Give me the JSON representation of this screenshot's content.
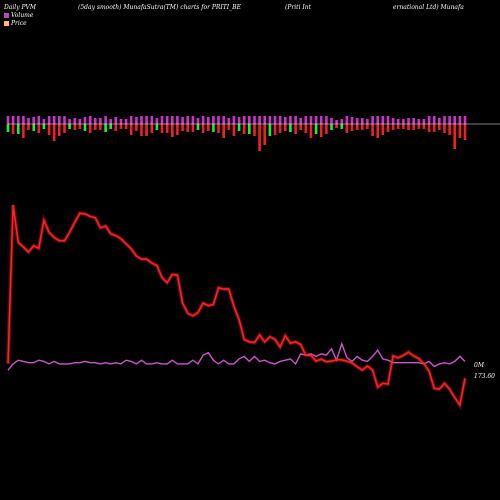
{
  "header": {
    "left": "Daily PVM",
    "center": "(5day smooth) MunafaSutra(TM) charts for PRITI_BE",
    "right1": "(Priti Int",
    "right2": "ernational Ltd) Munafa"
  },
  "legend": {
    "volume_label": "Volume",
    "price_label": "Price",
    "volume_color": "#bb44bb",
    "price_color": "#ffbb66"
  },
  "chart_data": {
    "type": "line",
    "volume_bars": {
      "up_color": "#22ee22",
      "down_color": "#ee2222",
      "oscillator_color": "#cc33cc",
      "values": [
        8,
        -10,
        10,
        -14,
        -6,
        7,
        -9,
        5,
        -11,
        -17,
        -12,
        -9,
        5,
        -6,
        -5,
        7,
        -9,
        -6,
        -6,
        8,
        5,
        -7,
        -5,
        -5,
        -11,
        -7,
        -12,
        -12,
        -9,
        6,
        -9,
        -9,
        -13,
        -11,
        -7,
        -8,
        -8,
        6,
        -9,
        -7,
        8,
        -9,
        -14,
        -6,
        -12,
        7,
        -10,
        10,
        -12,
        -27,
        -21,
        12,
        -11,
        -9,
        -7,
        8,
        -10,
        -6,
        -9,
        -14,
        10,
        -13,
        -10,
        6,
        -4,
        5,
        -9,
        -7,
        -6,
        -6,
        -5,
        -12,
        -14,
        -11,
        -8,
        -6,
        -5,
        -5,
        -6,
        -6,
        -5,
        -5,
        -8,
        -8,
        -6,
        -9,
        -11,
        -25,
        -14,
        -16
      ]
    },
    "price_series": {
      "color": "#ff2222",
      "values": [
        206,
        455,
        396,
        389,
        381,
        391,
        387,
        431,
        412,
        404,
        399,
        399,
        412,
        428,
        442,
        441,
        437,
        435,
        419,
        422,
        410,
        407,
        402,
        394,
        386,
        375,
        370,
        370,
        364,
        360,
        341,
        333,
        346,
        345,
        301,
        285,
        281,
        286,
        301,
        297,
        299,
        325,
        323,
        323,
        296,
        275,
        244,
        240,
        239,
        251,
        240,
        248,
        244,
        232,
        250,
        238,
        240,
        236,
        219,
        219,
        210,
        213,
        209,
        210,
        212,
        212,
        210,
        207,
        201,
        196,
        202,
        196,
        169,
        175,
        174,
        218,
        215,
        219,
        224,
        218,
        214,
        206,
        194,
        167,
        166,
        175,
        166,
        153,
        141,
        183
      ]
    },
    "volume_series": {
      "color": "#cc55cc",
      "values": [
        36,
        41,
        44,
        43,
        42,
        42,
        44,
        43,
        41,
        43,
        41,
        41,
        41,
        42,
        42,
        43,
        42,
        42,
        41,
        42,
        41,
        42,
        41,
        44,
        43,
        41,
        44,
        41,
        41,
        42,
        41,
        41,
        44,
        41,
        41,
        41,
        44,
        41,
        48,
        50,
        44,
        41,
        44,
        41,
        41,
        45,
        47,
        43,
        47,
        43,
        44,
        42,
        41,
        43,
        44,
        45,
        41,
        49,
        48,
        49,
        47,
        49,
        48,
        53,
        44,
        57,
        46,
        43,
        47,
        44,
        43,
        47,
        52,
        45,
        44,
        42,
        42,
        42,
        42,
        42,
        42,
        41,
        43,
        39,
        41,
        42,
        41,
        43,
        47,
        43
      ]
    },
    "labels": {
      "volume_end": "0M",
      "price_end": "173.60"
    }
  }
}
